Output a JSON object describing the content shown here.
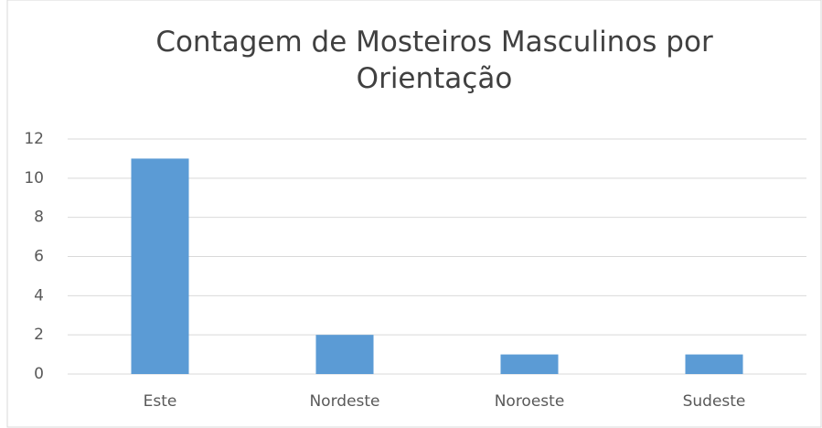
{
  "chart_data": {
    "type": "bar",
    "title": "Contagem de Mosteiros Masculinos por Orientação",
    "categories": [
      "Este",
      "Nordeste",
      "Noroeste",
      "Sudeste"
    ],
    "values": [
      11,
      2,
      1,
      1
    ],
    "color": "#5b9bd5",
    "ylim": [
      0,
      12
    ],
    "yticks": [
      0,
      2,
      4,
      6,
      8,
      10,
      12
    ],
    "grid": true
  }
}
